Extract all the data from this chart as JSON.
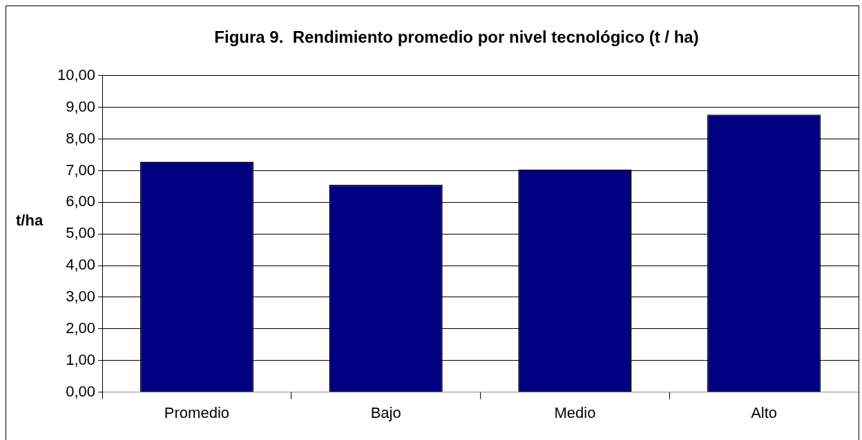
{
  "chart_data": {
    "type": "bar",
    "title": "Figura 9.  Rendimiento promedio por nivel tecnológico (t / ha)",
    "ylabel": "t/ha",
    "categories": [
      "Promedio",
      "Bajo",
      "Medio",
      "Alto"
    ],
    "values": [
      7.28,
      6.55,
      7.03,
      8.77
    ],
    "color": "#000080",
    "ylim": [
      0,
      10
    ],
    "yticks": [
      {
        "value": 0,
        "label": "0,00"
      },
      {
        "value": 1,
        "label": "1,00"
      },
      {
        "value": 2,
        "label": "2,00"
      },
      {
        "value": 3,
        "label": "3,00"
      },
      {
        "value": 4,
        "label": "4,00"
      },
      {
        "value": 5,
        "label": "5,00"
      },
      {
        "value": 6,
        "label": "6,00"
      },
      {
        "value": 7,
        "label": "7,00"
      },
      {
        "value": 8,
        "label": "8,00"
      },
      {
        "value": 9,
        "label": "9,00"
      },
      {
        "value": 10,
        "label": "10,00"
      }
    ],
    "grid": "y",
    "legend": false
  }
}
